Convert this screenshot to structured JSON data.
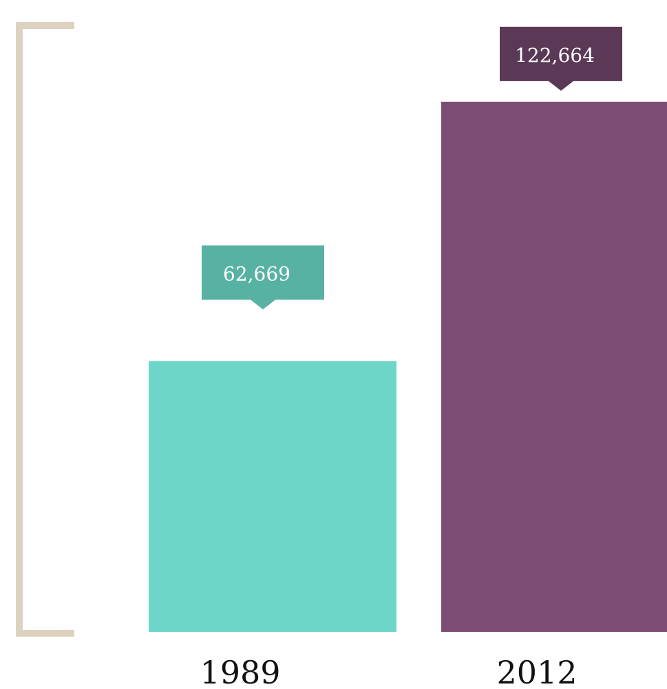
{
  "chart_data": {
    "type": "bar",
    "categories": [
      "1989",
      "2012"
    ],
    "values": [
      62669,
      122664
    ],
    "value_labels": [
      "62,669",
      "122,664"
    ],
    "ylim": [
      0,
      140000
    ],
    "grid": false,
    "legend": "none",
    "title": "",
    "xlabel": "",
    "ylabel": ""
  },
  "colors": {
    "bar_1989": "#6dd6c8",
    "bar_2012": "#7d4e75",
    "label_1989": "#58b2a3",
    "label_2012": "#5a3856",
    "bracket": "#ddd2c0",
    "tick_text": "#111111"
  }
}
